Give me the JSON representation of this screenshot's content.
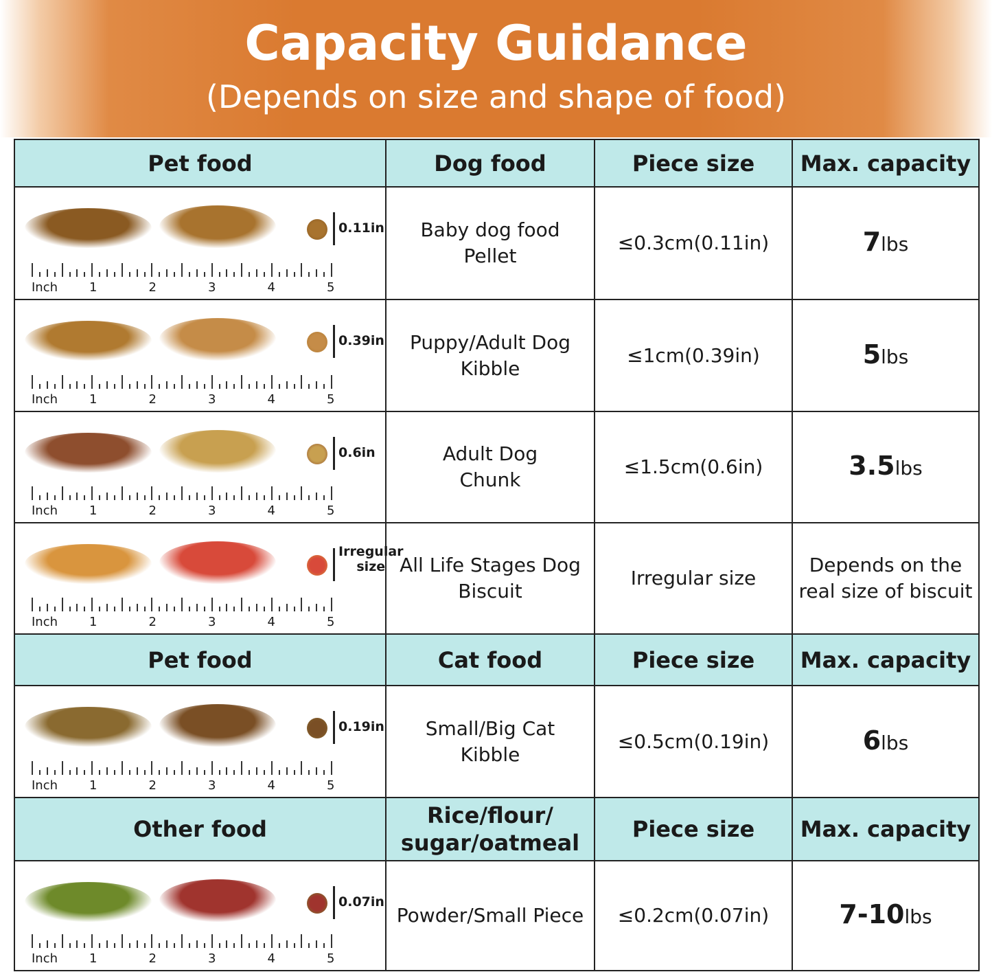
{
  "header": {
    "title": "Capacity Guidance",
    "subtitle": "(Depends on size and shape of food)"
  },
  "colors": {
    "banner": "#da7a30",
    "header_cell": "#bfe9e9"
  },
  "sections": [
    {
      "headers": [
        "Pet food",
        "Dog food",
        "Piece size",
        "Max. capacity"
      ],
      "rows": [
        {
          "piece_label": "0.11in",
          "food": "Baby dog food\nPellet",
          "size": "≤0.3cm(0.11in)",
          "cap_num": "7",
          "cap_unit": "lbs",
          "pile_colors": [
            "#8a5a22",
            "#a8732e"
          ]
        },
        {
          "piece_label": "0.39in",
          "food": "Puppy/Adult Dog\nKibble",
          "size": "≤1cm(0.39in)",
          "cap_num": "5",
          "cap_unit": "lbs",
          "pile_colors": [
            "#b07a30",
            "#c58c48"
          ]
        },
        {
          "piece_label": "0.6in",
          "food": "Adult Dog\nChunk",
          "size": "≤1.5cm(0.6in)",
          "cap_num": "3.5",
          "cap_unit": "lbs",
          "pile_colors": [
            "#8e4e2e",
            "#c8a050"
          ]
        },
        {
          "piece_label": "Irregular\nsize",
          "food": "All Life Stages Dog\nBiscuit",
          "size": "Irregular size",
          "cap_text": "Depends on the\nreal size of biscuit",
          "pile_colors": [
            "#d9953e",
            "#d84a3a"
          ]
        }
      ]
    },
    {
      "headers": [
        "Pet food",
        "Cat food",
        "Piece size",
        "Max. capacity"
      ],
      "rows": [
        {
          "piece_label": "0.19in",
          "food": "Small/Big Cat\nKibble",
          "size": "≤0.5cm(0.19in)",
          "cap_num": "6",
          "cap_unit": "lbs",
          "pile_colors": [
            "#8a6a30",
            "#7a4f25"
          ]
        }
      ]
    },
    {
      "headers": [
        "Other food",
        "Rice/flour/\nsugar/oatmeal",
        "Piece size",
        "Max. capacity"
      ],
      "rows": [
        {
          "piece_label": "0.07in",
          "food": "Powder/Small Piece",
          "size": "≤0.2cm(0.07in)",
          "cap_num": "7-10",
          "cap_unit": "lbs",
          "pile_colors": [
            "#6e8a2a",
            "#a0342e"
          ]
        }
      ]
    }
  ],
  "ruler": {
    "unit_label": "Inch",
    "numbers": [
      "1",
      "2",
      "3",
      "4",
      "5"
    ]
  }
}
